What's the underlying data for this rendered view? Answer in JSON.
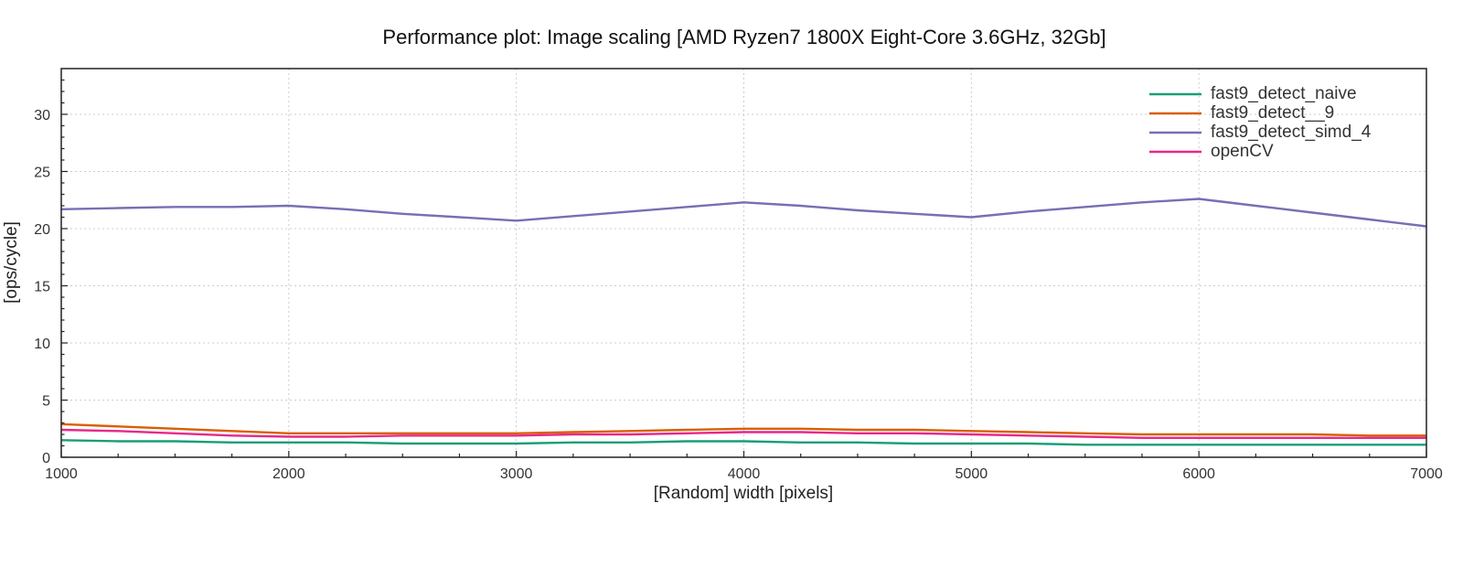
{
  "chart_data": {
    "type": "line",
    "title": "Performance plot: Image scaling [AMD Ryzen7 1800X Eight-Core 3.6GHz, 32Gb]",
    "xlabel": "[Random] width [pixels]",
    "ylabel": "[ops/cycle]",
    "xlim": [
      1000,
      7000
    ],
    "ylim": [
      0,
      34
    ],
    "xticks": [
      1000,
      2000,
      3000,
      4000,
      5000,
      6000,
      7000
    ],
    "yticks": [
      0,
      5,
      10,
      15,
      20,
      25,
      30
    ],
    "grid": true,
    "legend_position": "top-right",
    "x": [
      1000,
      1250,
      1500,
      1750,
      2000,
      2250,
      2500,
      2750,
      3000,
      3250,
      3500,
      3750,
      4000,
      4250,
      4500,
      4750,
      5000,
      5250,
      5500,
      5750,
      6000,
      6250,
      6500,
      6750,
      7000
    ],
    "series": [
      {
        "name": "fast9_detect_naive",
        "color": "#1b9e77",
        "values": [
          1.5,
          1.4,
          1.4,
          1.3,
          1.3,
          1.3,
          1.2,
          1.2,
          1.2,
          1.3,
          1.3,
          1.4,
          1.4,
          1.3,
          1.3,
          1.2,
          1.2,
          1.2,
          1.1,
          1.1,
          1.1,
          1.1,
          1.1,
          1.1,
          1.1
        ]
      },
      {
        "name": "fast9_detect__9",
        "color": "#d95f02",
        "values": [
          2.9,
          2.7,
          2.5,
          2.3,
          2.1,
          2.1,
          2.1,
          2.1,
          2.1,
          2.2,
          2.3,
          2.4,
          2.5,
          2.5,
          2.4,
          2.4,
          2.3,
          2.2,
          2.1,
          2.0,
          2.0,
          2.0,
          2.0,
          1.9,
          1.9
        ]
      },
      {
        "name": "fast9_detect_simd_4",
        "color": "#7570b3",
        "values": [
          21.7,
          21.8,
          21.9,
          21.9,
          22.0,
          21.7,
          21.3,
          21.0,
          20.7,
          21.1,
          21.5,
          21.9,
          22.3,
          22.0,
          21.6,
          21.3,
          21.0,
          21.5,
          21.9,
          22.3,
          22.6,
          22.0,
          21.4,
          20.8,
          20.2
        ]
      },
      {
        "name": "openCV",
        "color": "#e7298a",
        "values": [
          2.4,
          2.3,
          2.1,
          1.9,
          1.8,
          1.8,
          1.9,
          1.9,
          1.9,
          2.0,
          2.0,
          2.1,
          2.2,
          2.2,
          2.1,
          2.1,
          2.0,
          1.9,
          1.8,
          1.7,
          1.7,
          1.7,
          1.7,
          1.7,
          1.7
        ]
      }
    ]
  }
}
